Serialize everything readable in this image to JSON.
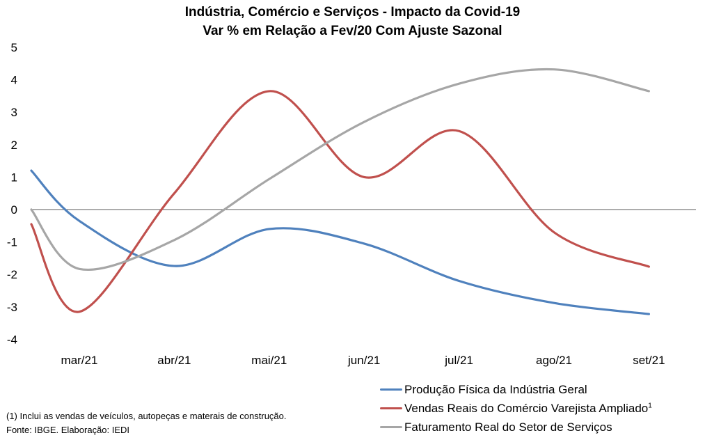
{
  "chart_data": {
    "type": "line",
    "smooth": true,
    "title": "Indústria, Comércio e Serviços - Impacto  da Covid-19",
    "subtitle": "Var % em Relação a Fev/20 Com Ajuste Sazonal",
    "xlabel": "",
    "ylabel": "",
    "categories": [
      "mar/21",
      "abr/21",
      "mai/21",
      "jun/21",
      "jul/21",
      "ago/21",
      "set/21"
    ],
    "start_values_note": "series begin at the left edge of the plot area (before mar/21)",
    "yticks": [
      "5",
      "4",
      "3",
      "2",
      "1",
      "0",
      "-1",
      "-2",
      "-3",
      "-4"
    ],
    "ylim": [
      -4,
      5
    ],
    "grid": false,
    "zero_line": true,
    "legend_position": "bottom-right",
    "series": [
      {
        "name": "Produção Física da Indústria Geral",
        "color": "#4f81bd",
        "start": 1.2,
        "values": [
          -0.35,
          -1.74,
          -0.6,
          -1.05,
          -2.2,
          -2.88,
          -3.22
        ]
      },
      {
        "name": "Vendas Reais do Comércio Varejista Ampliado",
        "name_superscript": "1",
        "color": "#c0504d",
        "start": -0.45,
        "values": [
          -3.15,
          0.5,
          3.65,
          1.0,
          2.42,
          -0.7,
          -1.76
        ]
      },
      {
        "name": "Faturamento Real do Setor de Serviços",
        "color": "#a6a6a6",
        "start": 0.0,
        "values": [
          -1.83,
          -0.94,
          0.94,
          2.7,
          3.88,
          4.32,
          3.65
        ]
      }
    ]
  },
  "footnote": {
    "line1": "(1) Inclui as vendas de veículos, autopeças e materais de construção.",
    "line2": "Fonte: IBGE. Elaboração: IEDI"
  }
}
